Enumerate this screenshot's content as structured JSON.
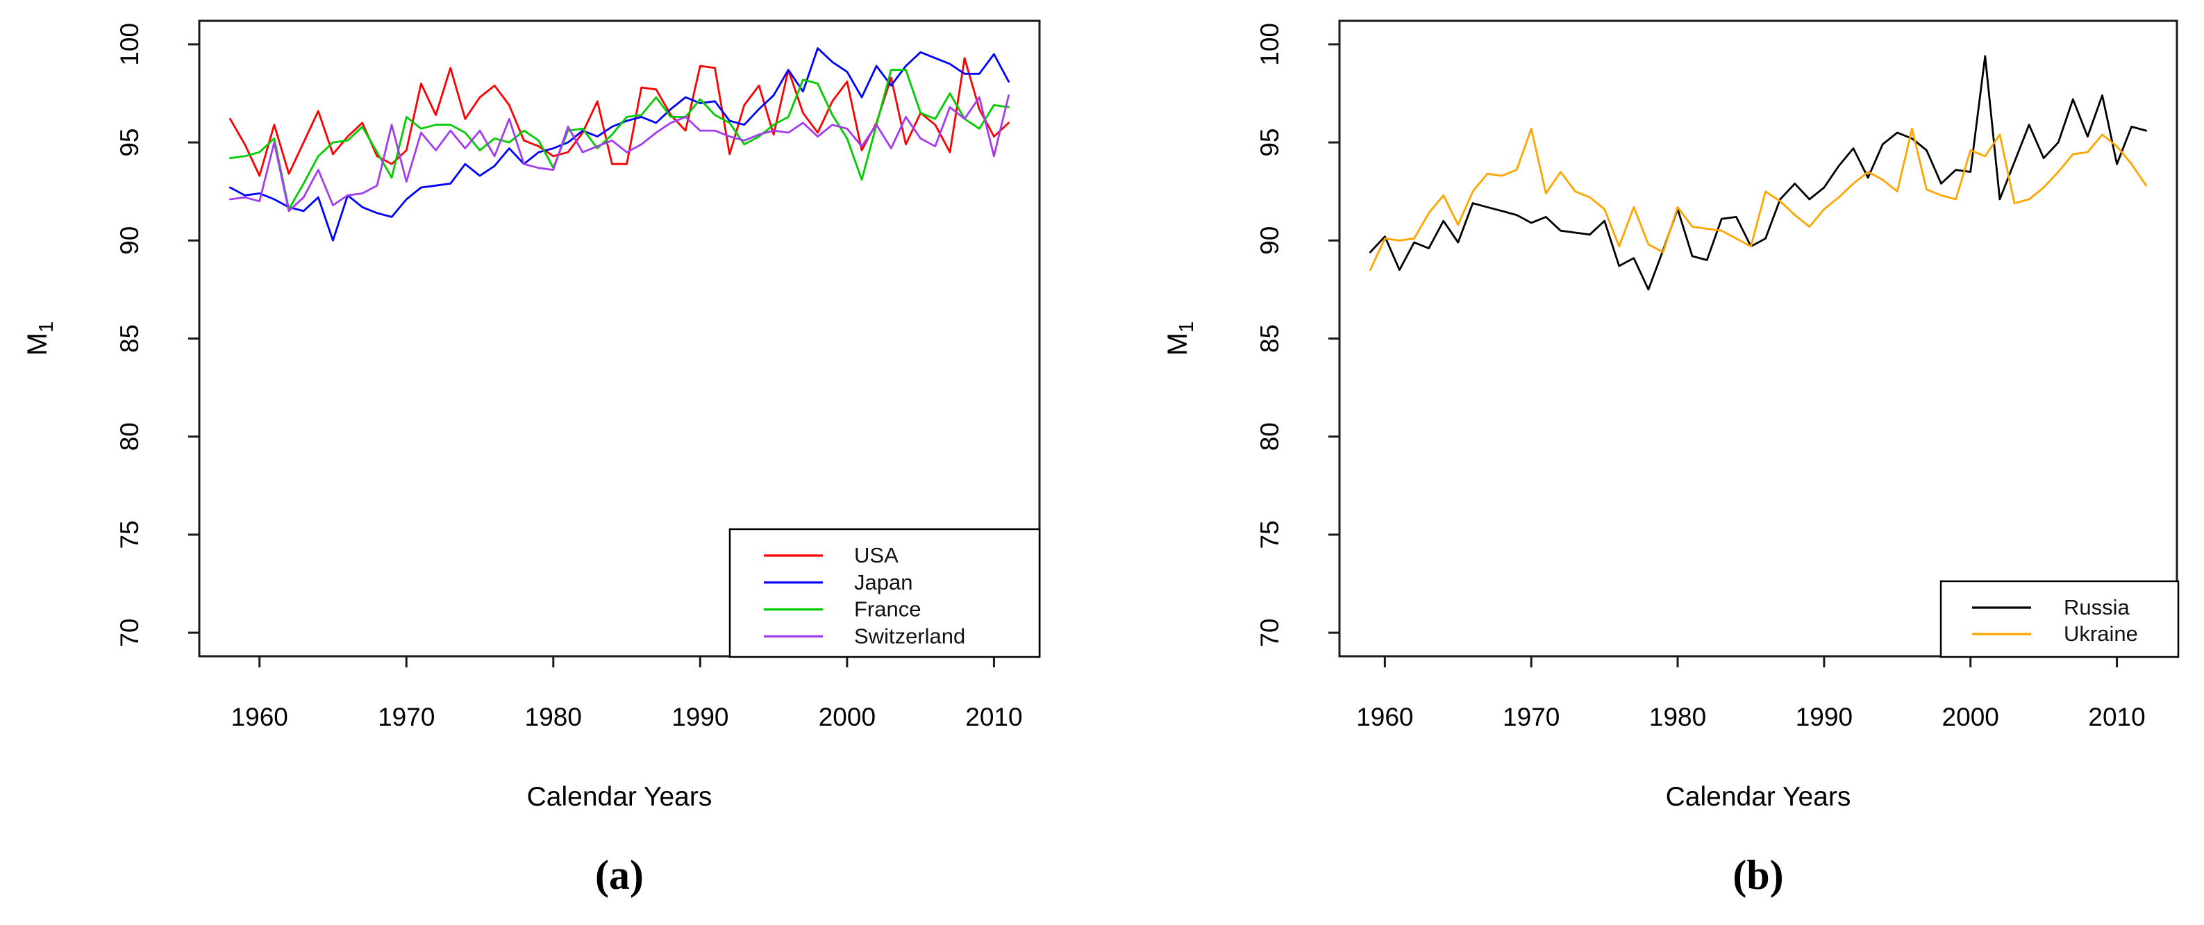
{
  "figure_title": "",
  "chart_data": [
    {
      "type": "line",
      "title": "",
      "xlabel": "Calendar Years",
      "ylabel_main": "M",
      "ylabel_sub": "1",
      "caption": "(a)",
      "xlim": [
        1955.9,
        2013.1
      ],
      "ylim": [
        68.8,
        101.2
      ],
      "xticks": [
        1960,
        1970,
        1980,
        1990,
        2000,
        2010
      ],
      "yticks": [
        70,
        75,
        80,
        85,
        90,
        95,
        100
      ],
      "grid": false,
      "legend_position": "bottomright",
      "start_year": 1958,
      "series": [
        {
          "name": "USA",
          "color": "#ff0000",
          "values": [
            96.2,
            94.9,
            93.3,
            95.9,
            93.4,
            95.0,
            96.6,
            94.4,
            95.3,
            96.0,
            94.3,
            93.9,
            94.6,
            98.0,
            96.4,
            98.8,
            96.2,
            97.3,
            97.9,
            96.9,
            95.1,
            94.8,
            94.3,
            94.5,
            95.5,
            97.1,
            93.9,
            93.9,
            97.8,
            97.7,
            96.4,
            95.6,
            98.9,
            98.8,
            94.4,
            96.9,
            97.9,
            95.4,
            98.7,
            96.5,
            95.5,
            97.1,
            98.1,
            94.6,
            96.0,
            98.3,
            94.9,
            96.5,
            95.9,
            94.5,
            99.3,
            96.7,
            95.3,
            96.0
          ]
        },
        {
          "name": "Japan",
          "color": "#0000ff",
          "values": [
            92.7,
            92.3,
            92.4,
            92.1,
            91.7,
            91.5,
            92.2,
            90.0,
            92.3,
            91.7,
            91.4,
            91.2,
            92.1,
            92.7,
            92.8,
            92.9,
            93.9,
            93.3,
            93.8,
            94.7,
            93.9,
            94.5,
            94.7,
            95.0,
            95.6,
            95.3,
            95.8,
            96.1,
            96.3,
            96.0,
            96.7,
            97.3,
            97.0,
            97.1,
            96.1,
            95.9,
            96.7,
            97.4,
            98.7,
            97.6,
            99.8,
            99.1,
            98.6,
            97.3,
            98.9,
            97.9,
            98.9,
            99.6,
            99.3,
            99.0,
            98.5,
            98.5,
            99.5,
            98.1
          ]
        },
        {
          "name": "France",
          "color": "#00cc00",
          "values": [
            94.2,
            94.3,
            94.5,
            95.2,
            91.6,
            92.9,
            94.3,
            95.0,
            95.1,
            95.8,
            94.5,
            93.2,
            96.3,
            95.7,
            95.9,
            95.9,
            95.5,
            94.6,
            95.2,
            95.0,
            95.6,
            95.1,
            93.7,
            95.6,
            95.7,
            94.7,
            95.4,
            96.3,
            96.4,
            97.3,
            96.3,
            96.3,
            97.2,
            96.4,
            96.0,
            94.9,
            95.3,
            95.9,
            96.3,
            98.2,
            98.0,
            96.4,
            95.2,
            93.1,
            95.9,
            98.7,
            98.7,
            96.5,
            96.2,
            97.5,
            96.2,
            95.7,
            96.9,
            96.8
          ]
        },
        {
          "name": "Switzerland",
          "color": "#a33cf0",
          "values": [
            92.1,
            92.2,
            92.0,
            95.0,
            91.5,
            92.2,
            93.6,
            91.8,
            92.3,
            92.4,
            92.8,
            95.9,
            93.0,
            95.5,
            94.6,
            95.6,
            94.7,
            95.6,
            94.3,
            96.2,
            93.9,
            93.7,
            93.6,
            95.8,
            94.5,
            94.8,
            95.1,
            94.5,
            94.9,
            95.5,
            96.0,
            96.3,
            95.6,
            95.6,
            95.3,
            95.1,
            95.4,
            95.6,
            95.5,
            96.0,
            95.3,
            95.9,
            95.7,
            94.8,
            95.9,
            94.7,
            96.3,
            95.2,
            94.8,
            96.8,
            96.2,
            97.3,
            94.3,
            97.4
          ]
        }
      ]
    },
    {
      "type": "line",
      "title": "",
      "xlabel": "Calendar Years",
      "ylabel_main": "M",
      "ylabel_sub": "1",
      "caption": "(b)",
      "xlim": [
        1956.9,
        2014.1
      ],
      "ylim": [
        68.8,
        101.2
      ],
      "xticks": [
        1960,
        1970,
        1980,
        1990,
        2000,
        2010
      ],
      "yticks": [
        70,
        75,
        80,
        85,
        90,
        95,
        100
      ],
      "grid": false,
      "legend_position": "bottomright",
      "start_year": 1959,
      "series": [
        {
          "name": "Russia",
          "color": "#000000",
          "values": [
            89.4,
            90.2,
            88.5,
            89.9,
            89.6,
            91.0,
            89.9,
            91.9,
            91.7,
            91.5,
            91.3,
            90.9,
            91.2,
            90.5,
            90.4,
            90.3,
            91.0,
            88.7,
            89.1,
            87.5,
            89.5,
            91.6,
            89.2,
            89.0,
            91.1,
            91.2,
            89.7,
            90.1,
            92.1,
            92.9,
            92.1,
            92.7,
            93.8,
            94.7,
            93.2,
            94.9,
            95.5,
            95.2,
            94.6,
            92.9,
            93.6,
            93.5,
            99.4,
            92.1,
            94.0,
            95.9,
            94.2,
            95.0,
            97.2,
            95.3,
            97.4,
            93.9,
            95.8,
            95.6
          ]
        },
        {
          "name": "Ukraine",
          "color": "#ffa500",
          "values": [
            88.5,
            90.1,
            90.0,
            90.1,
            91.4,
            92.3,
            90.8,
            92.5,
            93.4,
            93.3,
            93.6,
            95.7,
            92.4,
            93.5,
            92.5,
            92.2,
            91.6,
            89.7,
            91.7,
            89.8,
            89.4,
            91.7,
            90.7,
            90.6,
            90.5,
            90.1,
            89.7,
            92.5,
            92.0,
            91.3,
            90.7,
            91.6,
            92.2,
            92.9,
            93.5,
            93.1,
            92.5,
            95.7,
            92.6,
            92.3,
            92.1,
            94.6,
            94.3,
            95.4,
            91.9,
            92.1,
            92.7,
            93.5,
            94.4,
            94.5,
            95.4,
            94.8,
            93.9,
            92.8
          ]
        }
      ]
    }
  ]
}
